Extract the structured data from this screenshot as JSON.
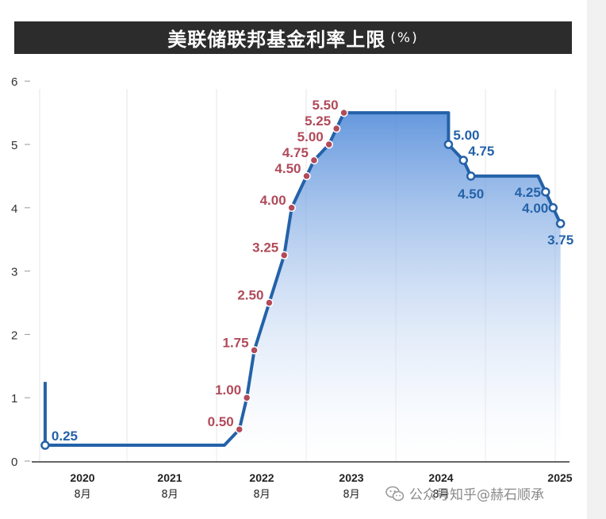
{
  "title": "美联储联邦基金利率上限",
  "unit": "(%)",
  "watermark": "公众号知乎@赫石顺承",
  "colors": {
    "line": "#2462a8",
    "fill_top": "#4a86d8",
    "fill_bottom": "#ffffff",
    "label_red": "#b14a5a",
    "label_blue": "#2462a8",
    "title_bg": "#2c2c2c"
  },
  "chart_data": {
    "type": "area",
    "xlabel": "",
    "ylabel": "",
    "ylim": [
      0,
      6
    ],
    "yticks": [
      "0",
      "1",
      "2",
      "3",
      "4",
      "5",
      "6"
    ],
    "xticks": [
      {
        "year": "2020",
        "month": "8月"
      },
      {
        "year": "2021",
        "month": "8月"
      },
      {
        "year": "2022",
        "month": "8月"
      },
      {
        "year": "2023",
        "month": "8月"
      },
      {
        "year": "2024",
        "month": "8月"
      },
      {
        "year": "2025",
        "month": ""
      }
    ],
    "grid": true,
    "series_points": [
      {
        "date": "2020-03",
        "value": 1.25
      },
      {
        "date": "2020-03",
        "value": 0.25
      },
      {
        "date": "2022-03",
        "value": 0.25
      },
      {
        "date": "2022-05",
        "value": 0.5
      },
      {
        "date": "2022-06",
        "value": 1.0
      },
      {
        "date": "2022-07",
        "value": 1.75
      },
      {
        "date": "2022-09",
        "value": 2.5
      },
      {
        "date": "2022-11",
        "value": 3.25
      },
      {
        "date": "2022-12",
        "value": 4.0
      },
      {
        "date": "2023-02",
        "value": 4.5
      },
      {
        "date": "2023-03",
        "value": 4.75
      },
      {
        "date": "2023-05",
        "value": 5.0
      },
      {
        "date": "2023-06",
        "value": 5.25
      },
      {
        "date": "2023-07",
        "value": 5.5
      },
      {
        "date": "2024-09",
        "value": 5.5
      },
      {
        "date": "2024-09",
        "value": 5.0
      },
      {
        "date": "2024-11",
        "value": 4.75
      },
      {
        "date": "2024-12",
        "value": 4.5
      },
      {
        "date": "2025-09",
        "value": 4.5
      },
      {
        "date": "2025-10",
        "value": 4.25
      },
      {
        "date": "2025-11",
        "value": 4.0
      },
      {
        "date": "2025-12",
        "value": 3.75
      }
    ],
    "labels": [
      {
        "date": "2020-03",
        "value": 0.25,
        "text": "0.25",
        "color": "blue"
      },
      {
        "date": "2022-05",
        "value": 0.5,
        "text": "0.50",
        "color": "red"
      },
      {
        "date": "2022-06",
        "value": 1.0,
        "text": "1.00",
        "color": "red"
      },
      {
        "date": "2022-07",
        "value": 1.75,
        "text": "1.75",
        "color": "red"
      },
      {
        "date": "2022-09",
        "value": 2.5,
        "text": "2.50",
        "color": "red"
      },
      {
        "date": "2022-11",
        "value": 3.25,
        "text": "3.25",
        "color": "red"
      },
      {
        "date": "2022-12",
        "value": 4.0,
        "text": "4.00",
        "color": "red"
      },
      {
        "date": "2023-02",
        "value": 4.5,
        "text": "4.50",
        "color": "red"
      },
      {
        "date": "2023-03",
        "value": 4.75,
        "text": "4.75",
        "color": "red"
      },
      {
        "date": "2023-05",
        "value": 5.0,
        "text": "5.00",
        "color": "red"
      },
      {
        "date": "2023-06",
        "value": 5.25,
        "text": "5.25",
        "color": "red"
      },
      {
        "date": "2023-07",
        "value": 5.5,
        "text": "5.50",
        "color": "red"
      },
      {
        "date": "2024-09",
        "value": 5.0,
        "text": "5.00",
        "color": "blue"
      },
      {
        "date": "2024-11",
        "value": 4.75,
        "text": "4.75",
        "color": "blue"
      },
      {
        "date": "2024-12",
        "value": 4.5,
        "text": "4.50",
        "color": "blue"
      },
      {
        "date": "2025-10",
        "value": 4.25,
        "text": "4.25",
        "color": "blue"
      },
      {
        "date": "2025-11",
        "value": 4.0,
        "text": "4.00",
        "color": "blue"
      },
      {
        "date": "2025-12",
        "value": 3.75,
        "text": "3.75",
        "color": "blue"
      }
    ]
  }
}
